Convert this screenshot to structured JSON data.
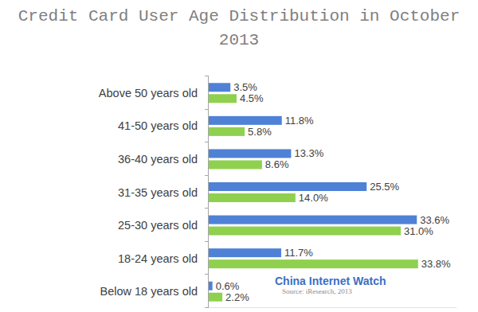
{
  "chart_data": {
    "type": "bar",
    "orientation": "horizontal",
    "title": "Credit Card User Age Distribution in October 2013",
    "categories": [
      "Above 50 years old",
      "41-50 years old",
      "36-40 years old",
      "31-35 years old",
      "25-30 years old",
      "18-24 years old",
      "Below 18 years old"
    ],
    "series": [
      {
        "color": "#4f81d6",
        "values": [
          3.5,
          11.8,
          13.3,
          25.5,
          33.6,
          11.7,
          0.6
        ],
        "value_labels": [
          "3.5%",
          "11.8%",
          "13.3%",
          "25.5%",
          "33.6%",
          "11.7%",
          "0.6%"
        ]
      },
      {
        "color": "#8fd14f",
        "values": [
          4.5,
          5.8,
          8.6,
          14.0,
          31.0,
          33.8,
          2.2
        ],
        "value_labels": [
          "4.5%",
          "5.8%",
          "8.6%",
          "14.0%",
          "31.0%",
          "33.8%",
          "2.2%"
        ]
      }
    ],
    "xlim": [
      0,
      40
    ],
    "data_labels": true,
    "tick_labels": "y",
    "grid": false,
    "annotations": [
      "China Internet Watch",
      "Source: iResearch, 2013"
    ]
  }
}
